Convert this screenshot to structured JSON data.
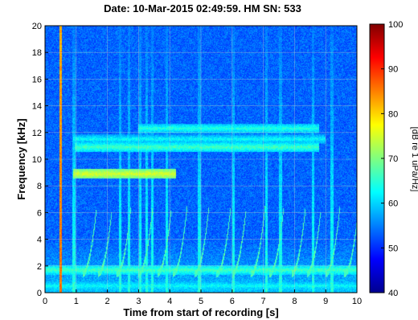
{
  "chart_data": {
    "type": "heatmap",
    "title": "Date: 10-Mar-2015 02:49:59. HM SN: 533",
    "xlabel": "Time from start of recording [s]",
    "ylabel": "Frequency [kHz]",
    "xlim": [
      0,
      10
    ],
    "ylim": [
      0,
      20
    ],
    "xticks": [
      0,
      1,
      2,
      3,
      4,
      5,
      6,
      7,
      8,
      9,
      10
    ],
    "yticks": [
      0,
      2,
      4,
      6,
      8,
      10,
      12,
      14,
      16,
      18,
      20
    ],
    "grid": true,
    "colorbar": {
      "label": "[dB re 1 uPa/Hz]",
      "range": [
        40,
        100
      ],
      "ticks": [
        40,
        50,
        60,
        70,
        80,
        90,
        100
      ],
      "colormap": "jet"
    },
    "features": {
      "vertical_transients_s": [
        0.5,
        0.93,
        2.4,
        2.7,
        3.05,
        3.25,
        3.45,
        3.9,
        4.95,
        6.05,
        7.1,
        7.55,
        8.6,
        9.2
      ],
      "tonal_bands_khz": [
        {
          "freq": 8.9,
          "t_start": 0.9,
          "t_end": 4.2,
          "level_db": 72
        },
        {
          "freq": 10.9,
          "t_start": 0.95,
          "t_end": 8.8,
          "level_db": 62
        },
        {
          "freq": 11.5,
          "t_start": 0.9,
          "t_end": 9.0,
          "level_db": 58
        },
        {
          "freq": 12.3,
          "t_start": 3.0,
          "t_end": 8.8,
          "level_db": 60
        },
        {
          "freq": 1.7,
          "t_start": 0.0,
          "t_end": 10.0,
          "level_db": 62
        },
        {
          "freq": 0.5,
          "t_start": 0.0,
          "t_end": 10.0,
          "level_db": 58
        }
      ],
      "whistle_onsets_s": [
        1.2,
        1.7,
        2.3,
        3.0,
        3.6,
        4.1,
        4.8,
        5.5,
        6.0,
        6.6,
        7.2,
        7.9,
        8.4,
        9.0,
        9.6
      ],
      "background_db": 47
    },
    "colors": {
      "low": "#00008f",
      "high": "#800000",
      "grid": "#c8c8c8",
      "frame": "#000000"
    }
  }
}
